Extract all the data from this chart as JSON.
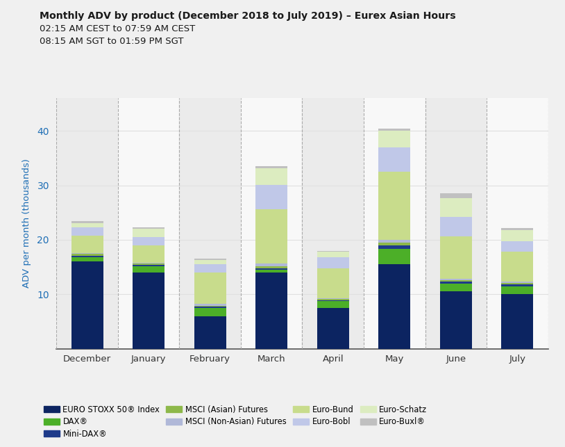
{
  "title_line1": "Monthly ADV by product (December 2018 to July 2019) – Eurex Asian Hours",
  "subtitle_line1": "02:15 AM CEST to 07:59 AM CEST",
  "subtitle_line2": "08:15 AM SGT to 01:59 PM SGT",
  "ylabel": "ADV per month (thousands)",
  "months": [
    "December",
    "January",
    "February",
    "March",
    "April",
    "May",
    "June",
    "July"
  ],
  "ylim": [
    0,
    46
  ],
  "yticks": [
    10,
    20,
    30,
    40
  ],
  "segments": [
    {
      "label": "EURO STOXX 50® Index",
      "color": "#0c2461",
      "values": [
        16.0,
        14.0,
        6.0,
        14.0,
        7.5,
        15.5,
        10.5,
        10.0
      ]
    },
    {
      "label": "DAX®",
      "color": "#4caf28",
      "values": [
        0.8,
        1.2,
        1.5,
        0.5,
        1.2,
        2.8,
        1.5,
        1.5
      ]
    },
    {
      "label": "Mini-DAX®",
      "color": "#1e3a8a",
      "values": [
        0.3,
        0.2,
        0.2,
        0.3,
        0.2,
        0.7,
        0.3,
        0.3
      ]
    },
    {
      "label": "MSCI (Asian) Futures",
      "color": "#8db84a",
      "values": [
        0.3,
        0.2,
        0.2,
        0.4,
        0.2,
        0.5,
        0.3,
        0.3
      ]
    },
    {
      "label": "MSCI (Non-Asian) Futures",
      "color": "#b0b8d8",
      "values": [
        0.2,
        0.2,
        0.3,
        0.4,
        0.2,
        0.5,
        0.3,
        0.2
      ]
    },
    {
      "label": "Euro-Bund",
      "color": "#c8dc8c",
      "values": [
        3.2,
        3.2,
        5.8,
        10.0,
        5.5,
        12.5,
        7.8,
        5.5
      ]
    },
    {
      "label": "Euro-Bobl",
      "color": "#c0c8e8",
      "values": [
        1.5,
        1.5,
        1.5,
        4.5,
        2.0,
        4.5,
        3.5,
        2.0
      ]
    },
    {
      "label": "Euro-Schatz",
      "color": "#dcecc0",
      "values": [
        0.8,
        1.5,
        0.8,
        3.0,
        1.0,
        3.0,
        3.5,
        2.0
      ]
    },
    {
      "label": "Euro-Buxl®",
      "color": "#c0c0c0",
      "values": [
        0.4,
        0.3,
        0.2,
        0.4,
        0.2,
        0.5,
        0.8,
        0.4
      ]
    }
  ],
  "background_color": "#f0f0f0",
  "plot_bg_color": "#ffffff",
  "title_color": "#1a1a1a",
  "ylabel_color": "#1e6eb5",
  "ytick_color": "#1e6eb5",
  "bar_width": 0.52,
  "grid_color": "#e0e0e0",
  "dashed_line_color": "#aaaaaa",
  "band_even_color": "#ebebeb",
  "band_odd_color": "#f8f8f8"
}
